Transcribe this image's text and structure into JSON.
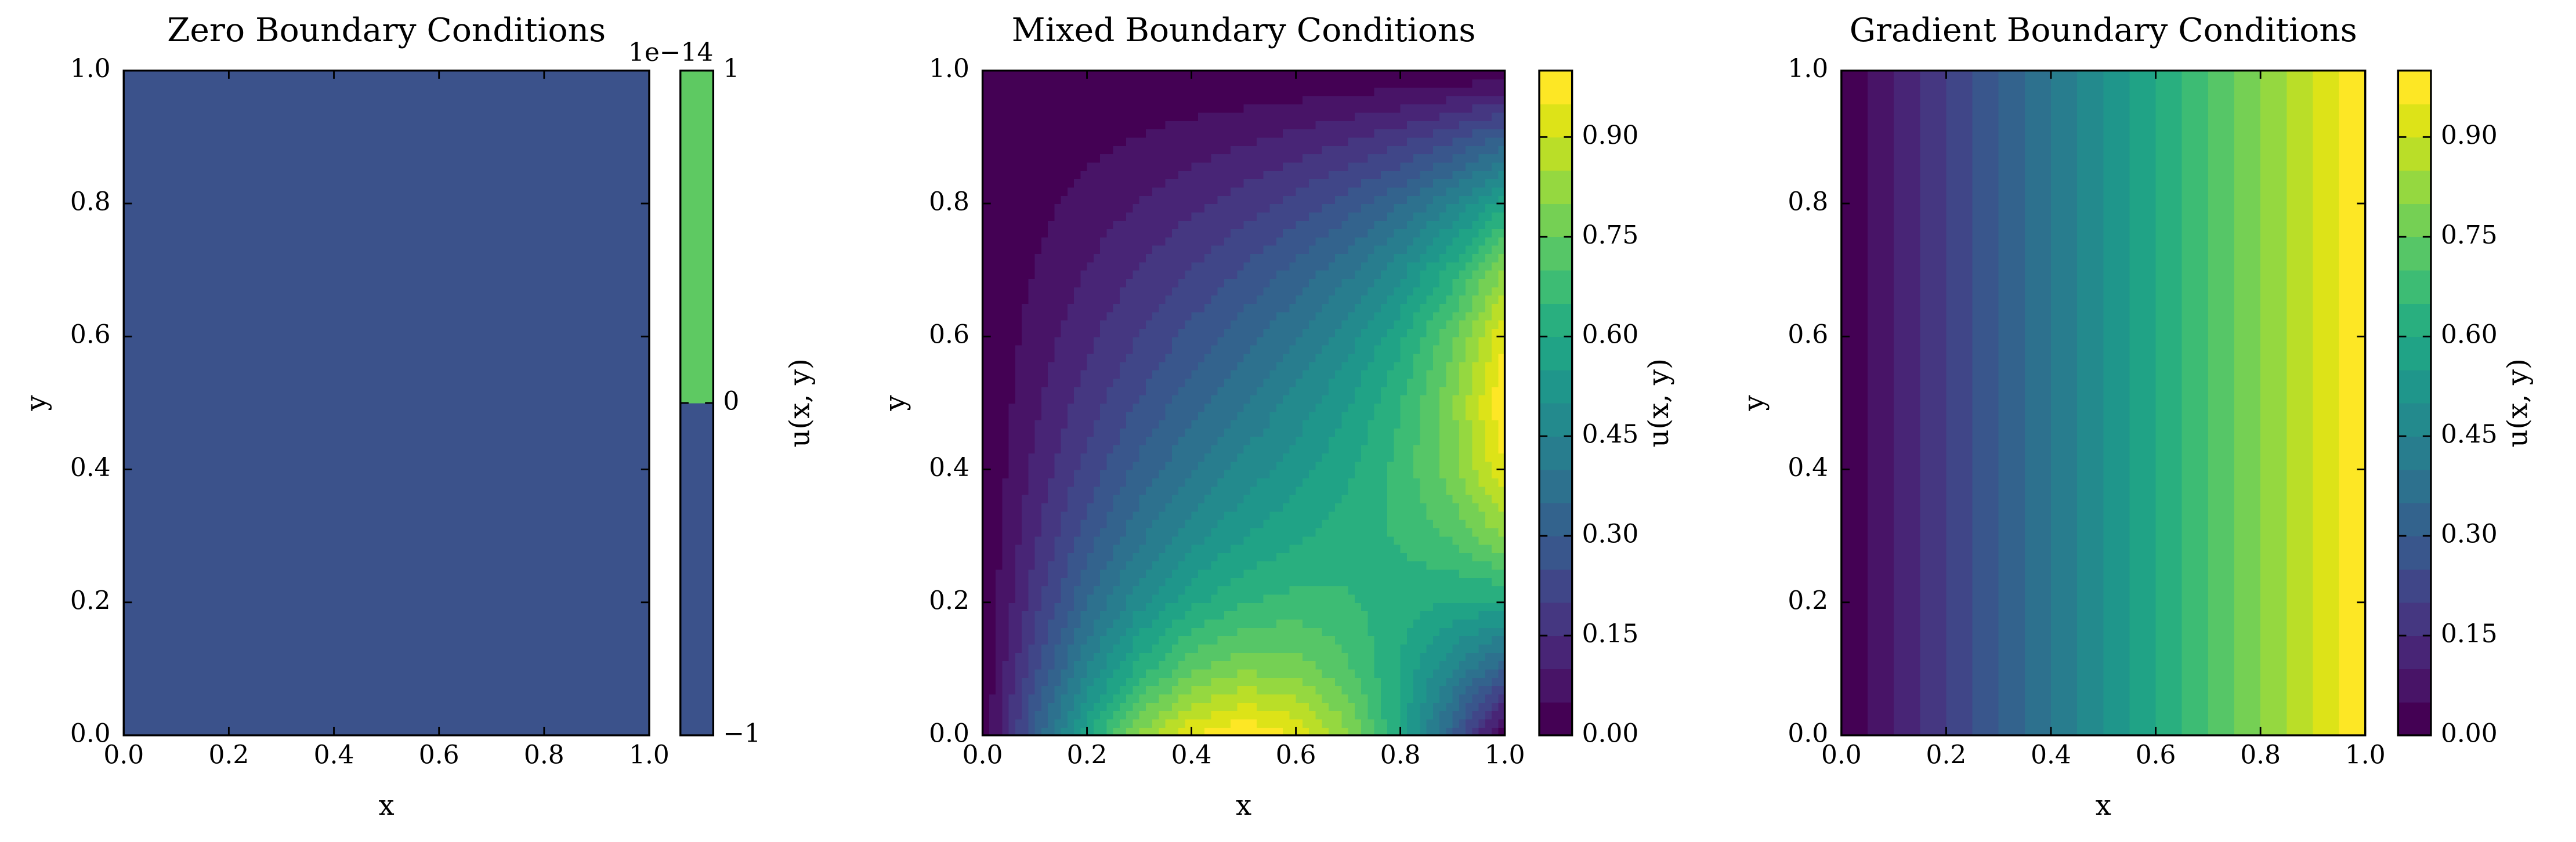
{
  "chart_data": [
    {
      "type": "contour",
      "title": "Zero Boundary Conditions",
      "xlabel": "x",
      "ylabel": "y",
      "x": [
        0,
        1
      ],
      "y": [
        0,
        1
      ],
      "z": [
        [
          0,
          0
        ],
        [
          0,
          0
        ]
      ],
      "levels": [
        -1,
        0,
        1
      ],
      "colors": [
        "#3b528b",
        "#5ec962"
      ],
      "xlim": [
        0,
        1
      ],
      "ylim": [
        0,
        1
      ],
      "xticks": [
        {
          "value": 0,
          "label": "0.0"
        },
        {
          "value": 0.2,
          "label": "0.2"
        },
        {
          "value": 0.4,
          "label": "0.4"
        },
        {
          "value": 0.6,
          "label": "0.6"
        },
        {
          "value": 0.8,
          "label": "0.8"
        },
        {
          "value": 1,
          "label": "1.0"
        }
      ],
      "yticks": [
        {
          "value": 0,
          "label": "0.0"
        },
        {
          "value": 0.2,
          "label": "0.2"
        },
        {
          "value": 0.4,
          "label": "0.4"
        },
        {
          "value": 0.6,
          "label": "0.6"
        },
        {
          "value": 0.8,
          "label": "0.8"
        },
        {
          "value": 1,
          "label": "1.0"
        }
      ],
      "colorbar": {
        "label": "u(x, y)",
        "offset_label": "1e−14",
        "ylim": [
          -1,
          1
        ],
        "yticks": [
          {
            "value": -1,
            "label": "−1"
          },
          0,
          1
        ]
      }
    },
    {
      "type": "contour",
      "title": "Mixed Boundary Conditions",
      "xlabel": "x",
      "ylabel": "y",
      "x": [
        0,
        0.1,
        0.2,
        0.3,
        0.4,
        0.5,
        0.6,
        0.7,
        0.8,
        0.9,
        1
      ],
      "y": [
        0,
        0.1,
        0.2,
        0.3,
        0.4,
        0.5,
        0.6,
        0.7,
        0.8,
        0.9,
        1
      ],
      "z": [
        [
          0,
          0.309,
          0.588,
          0.809,
          0.951,
          1,
          0.951,
          0.809,
          0.588,
          0.309,
          0
        ],
        [
          0,
          0.234,
          0.447,
          0.619,
          0.737,
          0.791,
          0.78,
          0.709,
          0.593,
          0.451,
          0.309
        ],
        [
          0,
          0.18,
          0.346,
          0.485,
          0.587,
          0.648,
          0.669,
          0.656,
          0.624,
          0.593,
          0.588
        ],
        [
          0,
          0.142,
          0.274,
          0.388,
          0.48,
          0.547,
          0.592,
          0.624,
          0.656,
          0.709,
          0.809
        ],
        [
          0,
          0.112,
          0.219,
          0.315,
          0.398,
          0.468,
          0.53,
          0.592,
          0.669,
          0.78,
          0.951
        ],
        [
          0,
          0.089,
          0.175,
          0.255,
          0.329,
          0.399,
          0.468,
          0.547,
          0.648,
          0.791,
          1
        ],
        [
          0,
          0.07,
          0.137,
          0.203,
          0.266,
          0.329,
          0.398,
          0.48,
          0.587,
          0.737,
          0.951
        ],
        [
          0,
          0.052,
          0.102,
          0.152,
          0.203,
          0.255,
          0.315,
          0.388,
          0.485,
          0.619,
          0.809
        ],
        [
          0,
          0.034,
          0.068,
          0.102,
          0.137,
          0.175,
          0.219,
          0.274,
          0.346,
          0.447,
          0.588
        ],
        [
          0,
          0.017,
          0.034,
          0.052,
          0.07,
          0.089,
          0.112,
          0.142,
          0.18,
          0.234,
          0.309
        ],
        [
          0,
          0,
          0,
          0,
          0,
          0,
          0,
          0,
          0,
          0,
          0
        ]
      ],
      "levels": [
        0,
        0.05,
        0.1,
        0.15,
        0.2,
        0.25,
        0.3,
        0.35,
        0.4,
        0.45,
        0.5,
        0.55,
        0.6,
        0.65,
        0.7,
        0.75,
        0.8,
        0.85,
        0.9,
        0.95,
        1
      ],
      "colors": [
        "#440154",
        "#481467",
        "#482576",
        "#453781",
        "#404688",
        "#39568c",
        "#33638d",
        "#2d718e",
        "#287d8e",
        "#238a8d",
        "#1f968b",
        "#20a386",
        "#29af7f",
        "#3dbc74",
        "#56c667",
        "#75d054",
        "#95d840",
        "#bade28",
        "#dde318",
        "#fde725"
      ],
      "xlim": [
        0,
        1
      ],
      "ylim": [
        0,
        1
      ],
      "xticks": [
        {
          "value": 0,
          "label": "0.0"
        },
        {
          "value": 0.2,
          "label": "0.2"
        },
        {
          "value": 0.4,
          "label": "0.4"
        },
        {
          "value": 0.6,
          "label": "0.6"
        },
        {
          "value": 0.8,
          "label": "0.8"
        },
        {
          "value": 1,
          "label": "1.0"
        }
      ],
      "yticks": [
        {
          "value": 0,
          "label": "0.0"
        },
        {
          "value": 0.2,
          "label": "0.2"
        },
        {
          "value": 0.4,
          "label": "0.4"
        },
        {
          "value": 0.6,
          "label": "0.6"
        },
        {
          "value": 0.8,
          "label": "0.8"
        },
        {
          "value": 1,
          "label": "1.0"
        }
      ],
      "colorbar": {
        "label": "u(x, y)",
        "ylim": [
          0,
          1
        ],
        "yticks": [
          {
            "value": 0,
            "label": "0.00"
          },
          {
            "value": 0.15,
            "label": "0.15"
          },
          {
            "value": 0.3,
            "label": "0.30"
          },
          {
            "value": 0.45,
            "label": "0.45"
          },
          {
            "value": 0.6,
            "label": "0.60"
          },
          {
            "value": 0.75,
            "label": "0.75"
          },
          {
            "value": 0.9,
            "label": "0.90"
          }
        ]
      }
    },
    {
      "type": "contour",
      "title": "Gradient Boundary Conditions",
      "xlabel": "x",
      "ylabel": "y",
      "x": [
        0,
        0.1,
        0.2,
        0.3,
        0.4,
        0.5,
        0.6,
        0.7,
        0.8,
        0.9,
        1
      ],
      "y": [
        0,
        1
      ],
      "z": [
        [
          0,
          0.1,
          0.2,
          0.3,
          0.4,
          0.5,
          0.6,
          0.7,
          0.8,
          0.9,
          1
        ],
        [
          0,
          0.1,
          0.2,
          0.3,
          0.4,
          0.5,
          0.6,
          0.7,
          0.8,
          0.9,
          1
        ]
      ],
      "levels": [
        0,
        0.05,
        0.1,
        0.15,
        0.2,
        0.25,
        0.3,
        0.35,
        0.4,
        0.45,
        0.5,
        0.55,
        0.6,
        0.65,
        0.7,
        0.75,
        0.8,
        0.85,
        0.9,
        0.95,
        1
      ],
      "colors": [
        "#440154",
        "#481467",
        "#482576",
        "#453781",
        "#404688",
        "#39568c",
        "#33638d",
        "#2d718e",
        "#287d8e",
        "#238a8d",
        "#1f968b",
        "#20a386",
        "#29af7f",
        "#3dbc74",
        "#56c667",
        "#75d054",
        "#95d840",
        "#bade28",
        "#dde318",
        "#fde725"
      ],
      "xlim": [
        0,
        1
      ],
      "ylim": [
        0,
        1
      ],
      "xticks": [
        {
          "value": 0,
          "label": "0.0"
        },
        {
          "value": 0.2,
          "label": "0.2"
        },
        {
          "value": 0.4,
          "label": "0.4"
        },
        {
          "value": 0.6,
          "label": "0.6"
        },
        {
          "value": 0.8,
          "label": "0.8"
        },
        {
          "value": 1,
          "label": "1.0"
        }
      ],
      "yticks": [
        {
          "value": 0,
          "label": "0.0"
        },
        {
          "value": 0.2,
          "label": "0.2"
        },
        {
          "value": 0.4,
          "label": "0.4"
        },
        {
          "value": 0.6,
          "label": "0.6"
        },
        {
          "value": 0.8,
          "label": "0.8"
        },
        {
          "value": 1,
          "label": "1.0"
        }
      ],
      "colorbar": {
        "label": "u(x, y)",
        "ylim": [
          0,
          1
        ],
        "yticks": [
          {
            "value": 0,
            "label": "0.00"
          },
          {
            "value": 0.15,
            "label": "0.15"
          },
          {
            "value": 0.3,
            "label": "0.30"
          },
          {
            "value": 0.45,
            "label": "0.45"
          },
          {
            "value": 0.6,
            "label": "0.60"
          },
          {
            "value": 0.75,
            "label": "0.75"
          },
          {
            "value": 0.9,
            "label": "0.90"
          }
        ]
      }
    }
  ]
}
